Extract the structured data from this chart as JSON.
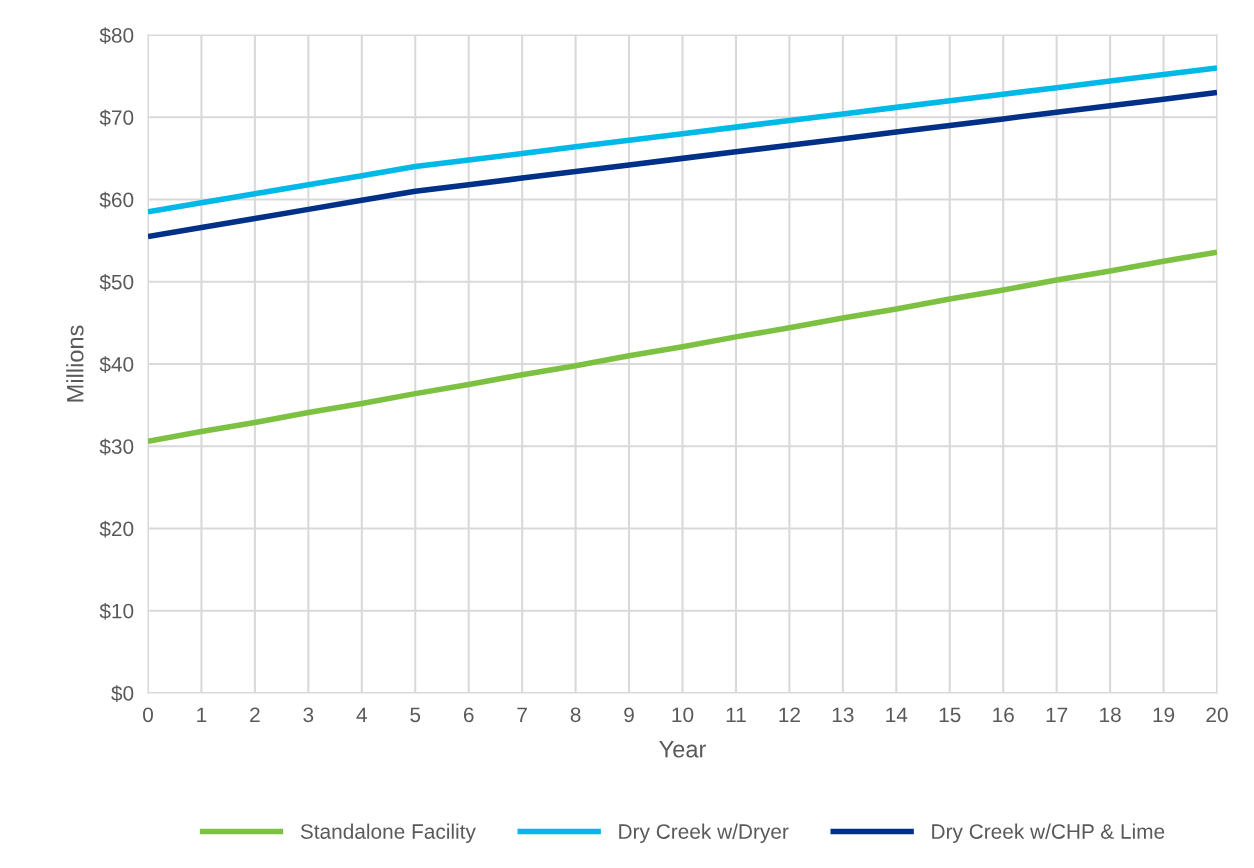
{
  "chart_data": {
    "type": "line",
    "xlabel": "Year",
    "ylabel": "Millions",
    "x": [
      0,
      1,
      2,
      3,
      4,
      5,
      6,
      7,
      8,
      9,
      10,
      11,
      12,
      13,
      14,
      15,
      16,
      17,
      18,
      19,
      20
    ],
    "series": [
      {
        "name": "Standalone Facility",
        "color": "#7dc142",
        "values": [
          30.6,
          31.8,
          32.9,
          34.1,
          35.2,
          36.4,
          37.5,
          38.7,
          39.8,
          41.0,
          42.1,
          43.3,
          44.4,
          45.6,
          46.7,
          47.9,
          49.0,
          50.2,
          51.3,
          52.5,
          53.6
        ]
      },
      {
        "name": "Dry Creek w/Dryer",
        "color": "#00b9e6",
        "values": [
          58.5,
          59.6,
          60.7,
          61.8,
          62.9,
          64.0,
          64.8,
          65.6,
          66.4,
          67.2,
          68.0,
          68.8,
          69.6,
          70.4,
          71.2,
          72.0,
          72.8,
          73.6,
          74.4,
          75.2,
          76.0
        ]
      },
      {
        "name": "Dry Creek w/CHP & Lime",
        "color": "#003087",
        "values": [
          55.5,
          56.6,
          57.7,
          58.8,
          59.9,
          61.0,
          61.8,
          62.6,
          63.4,
          64.2,
          65.0,
          65.8,
          66.6,
          67.4,
          68.2,
          69.0,
          69.8,
          70.6,
          71.4,
          72.2,
          73.0
        ]
      }
    ],
    "xlim": [
      0,
      20
    ],
    "xticks": [
      0,
      1,
      2,
      3,
      4,
      5,
      6,
      7,
      8,
      9,
      10,
      11,
      12,
      13,
      14,
      15,
      16,
      17,
      18,
      19,
      20
    ],
    "ylim": [
      0,
      80
    ],
    "yticks": [
      {
        "value": 0,
        "label": "$0"
      },
      {
        "value": 10,
        "label": "$10"
      },
      {
        "value": 20,
        "label": "$20"
      },
      {
        "value": 30,
        "label": "$30"
      },
      {
        "value": 40,
        "label": "$40"
      },
      {
        "value": 50,
        "label": "$50"
      },
      {
        "value": 60,
        "label": "$60"
      },
      {
        "value": 70,
        "label": "$70"
      },
      {
        "value": 80,
        "label": "$80"
      }
    ],
    "grid": true,
    "legend": "bottom",
    "marker": "none",
    "line_style": "solid"
  }
}
